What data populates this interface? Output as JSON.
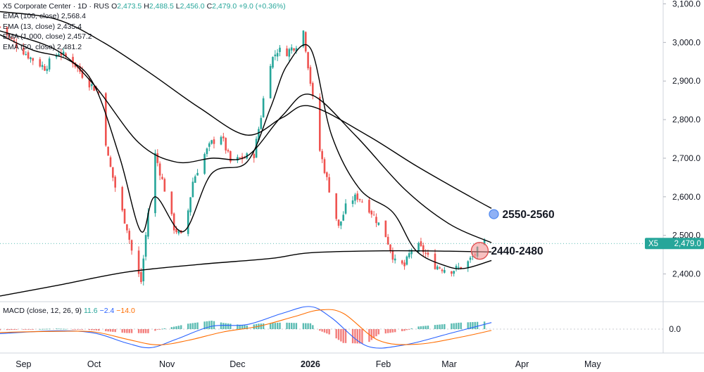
{
  "header": {
    "symbol_line": "X5 Corporate Center · 1D · RUS",
    "ohlc": {
      "o_label": "O",
      "o": "2,473.5",
      "h_label": "H",
      "h": "2,488.5",
      "l_label": "L",
      "l": "2,456.0",
      "c_label": "C",
      "c": "2,479.0",
      "change": "+9.0 (+0.36%)"
    },
    "indicators": [
      {
        "label": "EMA (100, close)",
        "value": "2,568.4"
      },
      {
        "label": "EMA (13, close)",
        "value": "2,435.4"
      },
      {
        "label": "EMA (1,000, close)",
        "value": "2,457.2"
      },
      {
        "label": "EMA (50, close)",
        "value": "2,481.2"
      }
    ]
  },
  "macd": {
    "label": "MACD (close, 12, 26, 9)",
    "v1": "11.6",
    "v2": "−2.4",
    "v3": "−14.0",
    "zero_label": "0.0"
  },
  "price_badge": {
    "symbol": "X5",
    "price": "2,479.0"
  },
  "annotations": [
    {
      "text": "2550-2560",
      "price": 2555,
      "x_date": "2026-03-20",
      "color": "#4a86f0"
    },
    {
      "text": "2440-2480",
      "price": 2460,
      "x_date": "2026-03-14",
      "color": "#e05252"
    }
  ],
  "colors": {
    "up": "#26a69a",
    "down": "#ef5350",
    "ema": "#000000",
    "macd_line": "#2962ff",
    "signal_line": "#ff6d00",
    "hist_up": "#26a69a",
    "hist_down": "#ef5350"
  },
  "chart_data": {
    "type": "candlestick",
    "title": "X5 Corporate Center · 1D · RUS",
    "x_range": [
      "2025-08-22",
      "2026-05-31"
    ],
    "ylim": [
      2330,
      3110
    ],
    "y_ticks": [
      2400,
      2500,
      2600,
      2700,
      2800,
      2900,
      3000,
      3100
    ],
    "y_tick_labels": [
      "2,400.0",
      "2,500.0",
      "2,600.0",
      "2,700.0",
      "2,800.0",
      "2,900.0",
      "3,000.0",
      "3,100.0"
    ],
    "x_ticks": [
      {
        "date": "2025-09-01",
        "label": "Sep"
      },
      {
        "date": "2025-10-01",
        "label": "Oct"
      },
      {
        "date": "2025-11-01",
        "label": "Nov"
      },
      {
        "date": "2025-12-01",
        "label": "Dec"
      },
      {
        "date": "2026-01-01",
        "label": "2026"
      },
      {
        "date": "2026-02-01",
        "label": "Feb"
      },
      {
        "date": "2026-03-01",
        "label": "Mar"
      },
      {
        "date": "2026-04-01",
        "label": "Apr"
      },
      {
        "date": "2026-05-01",
        "label": "May"
      }
    ],
    "last_price": 2479,
    "close_path": [
      [
        "2025-08-22",
        3040
      ],
      [
        "2025-08-28",
        3000
      ],
      [
        "2025-09-04",
        2960
      ],
      [
        "2025-09-10",
        2935
      ],
      [
        "2025-09-16",
        2975
      ],
      [
        "2025-09-22",
        2950
      ],
      [
        "2025-09-28",
        2900
      ],
      [
        "2025-10-03",
        2870
      ],
      [
        "2025-10-07",
        2700
      ],
      [
        "2025-10-11",
        2600
      ],
      [
        "2025-10-15",
        2520
      ],
      [
        "2025-10-18",
        2430
      ],
      [
        "2025-10-21",
        2380
      ],
      [
        "2025-10-24",
        2560
      ],
      [
        "2025-10-27",
        2710
      ],
      [
        "2025-10-31",
        2620
      ],
      [
        "2025-11-04",
        2520
      ],
      [
        "2025-11-08",
        2490
      ],
      [
        "2025-11-12",
        2640
      ],
      [
        "2025-11-16",
        2700
      ],
      [
        "2025-11-20",
        2740
      ],
      [
        "2025-11-24",
        2760
      ],
      [
        "2025-11-28",
        2690
      ],
      [
        "2025-12-03",
        2700
      ],
      [
        "2025-12-08",
        2710
      ],
      [
        "2025-12-11",
        2810
      ],
      [
        "2025-12-14",
        2940
      ],
      [
        "2025-12-18",
        2980
      ],
      [
        "2025-12-22",
        2975
      ],
      [
        "2025-12-26",
        2995
      ],
      [
        "2025-12-29",
        3030
      ],
      [
        "2026-01-05",
        2720
      ],
      [
        "2026-01-09",
        2620
      ],
      [
        "2026-01-13",
        2520
      ],
      [
        "2026-01-17",
        2590
      ],
      [
        "2026-01-21",
        2600
      ],
      [
        "2026-01-25",
        2580
      ],
      [
        "2026-01-29",
        2540
      ],
      [
        "2026-02-02",
        2500
      ],
      [
        "2026-02-06",
        2430
      ],
      [
        "2026-02-10",
        2420
      ],
      [
        "2026-02-14",
        2480
      ],
      [
        "2026-02-18",
        2460
      ],
      [
        "2026-02-22",
        2425
      ],
      [
        "2026-02-26",
        2415
      ],
      [
        "2026-03-02",
        2410
      ],
      [
        "2026-03-05",
        2415
      ],
      [
        "2026-03-09",
        2430
      ],
      [
        "2026-03-13",
        2460
      ],
      [
        "2026-03-16",
        2479
      ]
    ],
    "ema_lines": [
      {
        "name": "EMA (100, close)",
        "points": [
          [
            "2025-08-22",
            3080
          ],
          [
            "2025-09-15",
            3060
          ],
          [
            "2025-10-05",
            3000
          ],
          [
            "2025-10-25",
            2920
          ],
          [
            "2025-11-15",
            2830
          ],
          [
            "2025-12-05",
            2760
          ],
          [
            "2025-12-20",
            2805
          ],
          [
            "2026-01-01",
            2835
          ],
          [
            "2026-01-25",
            2760
          ],
          [
            "2026-02-15",
            2680
          ],
          [
            "2026-03-10",
            2600
          ],
          [
            "2026-03-19",
            2570
          ]
        ]
      },
      {
        "name": "EMA (50, close)",
        "points": [
          [
            "2025-08-22",
            3030
          ],
          [
            "2025-09-15",
            2980
          ],
          [
            "2025-10-01",
            2890
          ],
          [
            "2025-10-20",
            2740
          ],
          [
            "2025-11-05",
            2690
          ],
          [
            "2025-11-20",
            2700
          ],
          [
            "2025-12-05",
            2705
          ],
          [
            "2025-12-20",
            2810
          ],
          [
            "2026-01-01",
            2865
          ],
          [
            "2026-01-20",
            2760
          ],
          [
            "2026-02-10",
            2620
          ],
          [
            "2026-03-01",
            2530
          ],
          [
            "2026-03-19",
            2481
          ]
        ]
      },
      {
        "name": "EMA (13, close)",
        "points": [
          [
            "2025-08-22",
            3020
          ],
          [
            "2025-09-05",
            2980
          ],
          [
            "2025-09-20",
            2955
          ],
          [
            "2025-10-01",
            2890
          ],
          [
            "2025-10-12",
            2700
          ],
          [
            "2025-10-21",
            2510
          ],
          [
            "2025-10-27",
            2600
          ],
          [
            "2025-11-08",
            2510
          ],
          [
            "2025-11-20",
            2660
          ],
          [
            "2025-12-05",
            2690
          ],
          [
            "2025-12-15",
            2830
          ],
          [
            "2025-12-22",
            2940
          ],
          [
            "2026-01-01",
            2985
          ],
          [
            "2026-01-10",
            2760
          ],
          [
            "2026-01-22",
            2620
          ],
          [
            "2026-02-05",
            2560
          ],
          [
            "2026-02-15",
            2460
          ],
          [
            "2026-02-28",
            2420
          ],
          [
            "2026-03-08",
            2415
          ],
          [
            "2026-03-19",
            2435
          ]
        ]
      },
      {
        "name": "EMA (1,000, close)",
        "points": [
          [
            "2025-08-22",
            2343
          ],
          [
            "2025-09-15",
            2370
          ],
          [
            "2025-10-15",
            2405
          ],
          [
            "2025-11-15",
            2425
          ],
          [
            "2025-12-15",
            2440
          ],
          [
            "2026-01-01",
            2455
          ],
          [
            "2026-02-01",
            2460
          ],
          [
            "2026-03-01",
            2459
          ],
          [
            "2026-03-19",
            2457
          ]
        ]
      }
    ],
    "macd_ylim": [
      -45,
      45
    ],
    "macd_series": [
      {
        "name": "MACD",
        "points": [
          [
            "2025-08-22",
            -8
          ],
          [
            "2025-09-15",
            -3
          ],
          [
            "2025-10-01",
            -7
          ],
          [
            "2025-10-15",
            -25
          ],
          [
            "2025-10-25",
            -33
          ],
          [
            "2025-11-05",
            -18
          ],
          [
            "2025-11-20",
            5
          ],
          [
            "2025-12-05",
            8
          ],
          [
            "2025-12-20",
            28
          ],
          [
            "2026-01-01",
            40
          ],
          [
            "2026-01-10",
            20
          ],
          [
            "2026-01-25",
            -30
          ],
          [
            "2026-02-10",
            -28
          ],
          [
            "2026-03-01",
            -8
          ],
          [
            "2026-03-19",
            11.6
          ]
        ]
      },
      {
        "name": "Signal",
        "points": [
          [
            "2025-08-22",
            -6
          ],
          [
            "2025-09-15",
            -4
          ],
          [
            "2025-10-01",
            -5
          ],
          [
            "2025-10-15",
            -18
          ],
          [
            "2025-10-28",
            -28
          ],
          [
            "2025-11-10",
            -20
          ],
          [
            "2025-11-25",
            -5
          ],
          [
            "2025-12-10",
            5
          ],
          [
            "2025-12-25",
            22
          ],
          [
            "2026-01-05",
            34
          ],
          [
            "2026-01-15",
            28
          ],
          [
            "2026-01-30",
            -20
          ],
          [
            "2026-02-15",
            -27
          ],
          [
            "2026-03-05",
            -15
          ],
          [
            "2026-03-19",
            -2.4
          ]
        ]
      }
    ]
  }
}
